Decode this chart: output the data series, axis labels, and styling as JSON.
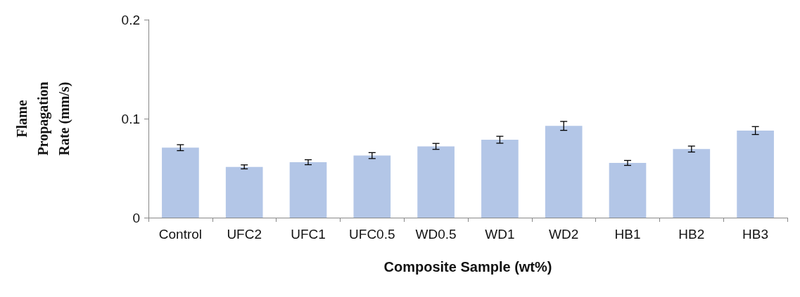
{
  "chart_data": {
    "type": "bar",
    "xlabel": "Composite Sample (wt%)",
    "ylabel": "Flame Propagation Rate (mm/s)",
    "categories": [
      "Control",
      "UFC2",
      "UFC1",
      "UFC0.5",
      "WD0.5",
      "WD1",
      "WD2",
      "HB1",
      "HB2",
      "HB3"
    ],
    "values": [
      0.0707,
      0.0513,
      0.056,
      0.0627,
      0.072,
      0.0787,
      0.0927,
      0.0553,
      0.0693,
      0.088
    ],
    "errors": [
      0.003,
      0.002,
      0.0025,
      0.003,
      0.003,
      0.0035,
      0.0045,
      0.0025,
      0.003,
      0.004
    ],
    "color": "#b3c6e7",
    "ylim": [
      0,
      0.2
    ],
    "yticks": [
      0,
      0.1,
      0.2
    ],
    "grid": false
  }
}
